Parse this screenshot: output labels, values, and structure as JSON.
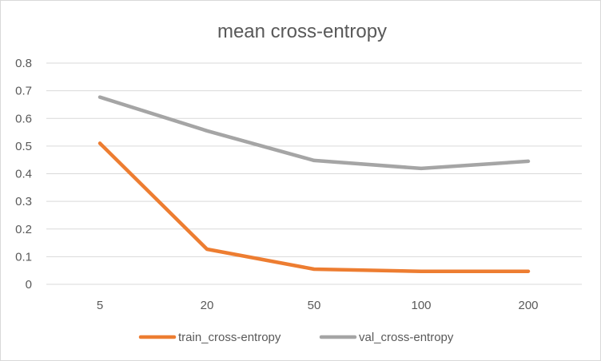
{
  "chart_data": {
    "type": "line",
    "title": "mean cross-entropy",
    "xlabel": "",
    "ylabel": "",
    "categories": [
      "5",
      "20",
      "50",
      "100",
      "200"
    ],
    "series": [
      {
        "name": "train_cross-entropy",
        "color": "#ed7d31",
        "values": [
          0.51,
          0.127,
          0.055,
          0.047,
          0.047
        ]
      },
      {
        "name": "val_cross-entropy",
        "color": "#a5a5a5",
        "values": [
          0.677,
          0.555,
          0.448,
          0.419,
          0.445
        ]
      }
    ],
    "ylim": [
      0,
      0.8
    ],
    "yticks": [
      "0",
      "0.1",
      "0.2",
      "0.3",
      "0.4",
      "0.5",
      "0.6",
      "0.7",
      "0.8"
    ],
    "grid": true,
    "legend_position": "bottom"
  }
}
